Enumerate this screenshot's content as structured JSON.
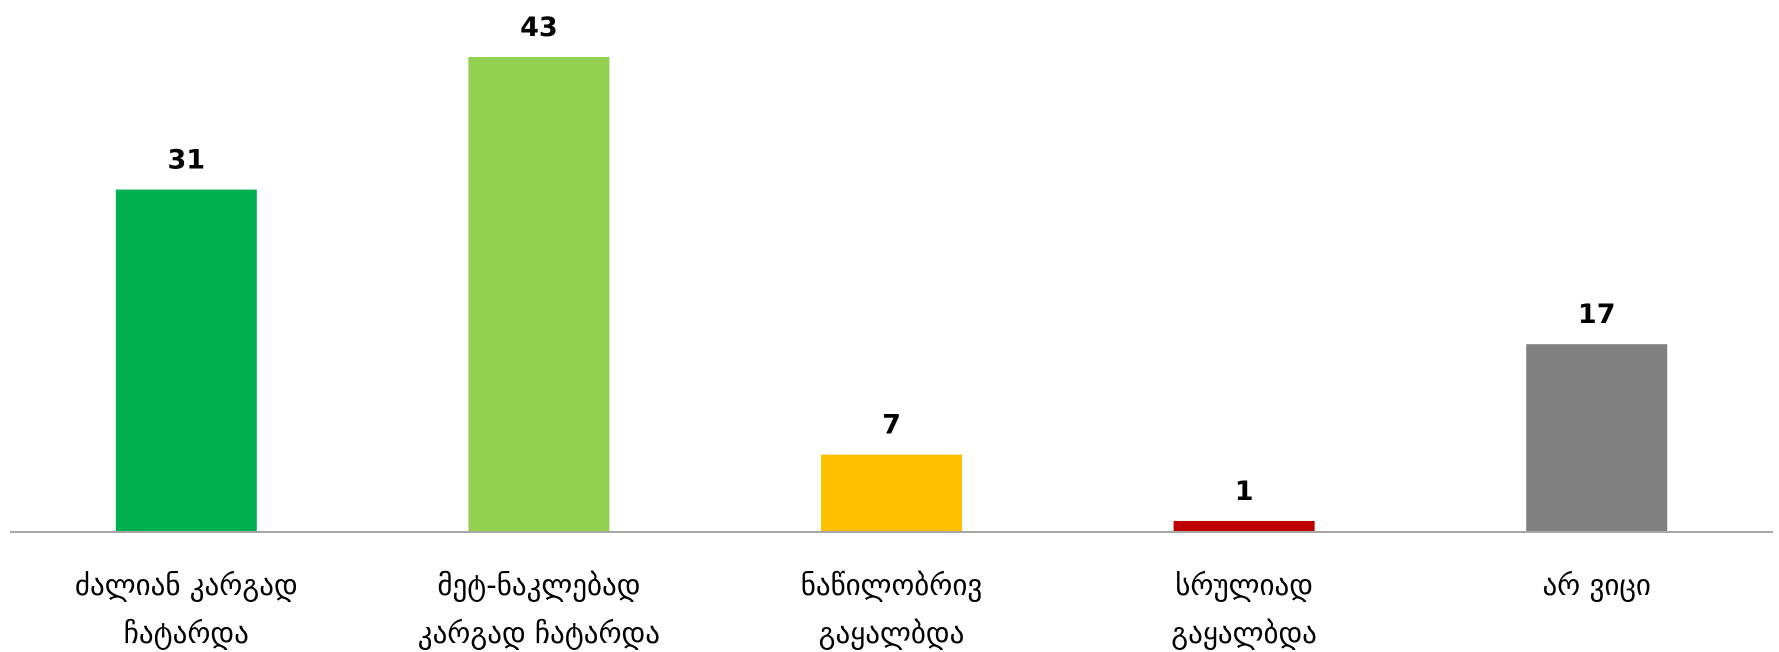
{
  "chart_data": {
    "type": "bar",
    "categories": [
      [
        "ძალიან კარგად",
        "ჩატარდა"
      ],
      [
        "მეტ-ნაკლებად",
        "კარგად ჩატარდა"
      ],
      [
        "ნაწილობრივ",
        "გაყალბდა"
      ],
      [
        "სრულიად",
        "გაყალბდა"
      ],
      [
        "არ ვიცი"
      ]
    ],
    "values": [
      31,
      43,
      7,
      1,
      17
    ],
    "data_labels": [
      "31",
      "43",
      "7",
      "1",
      "17"
    ],
    "colors": [
      "#00b050",
      "#92d050",
      "#ffc000",
      "#c00000",
      "#808080"
    ],
    "title": "",
    "xlabel": "",
    "ylabel": "",
    "ylim": [
      0,
      43
    ],
    "grid": false,
    "legend": "none"
  }
}
